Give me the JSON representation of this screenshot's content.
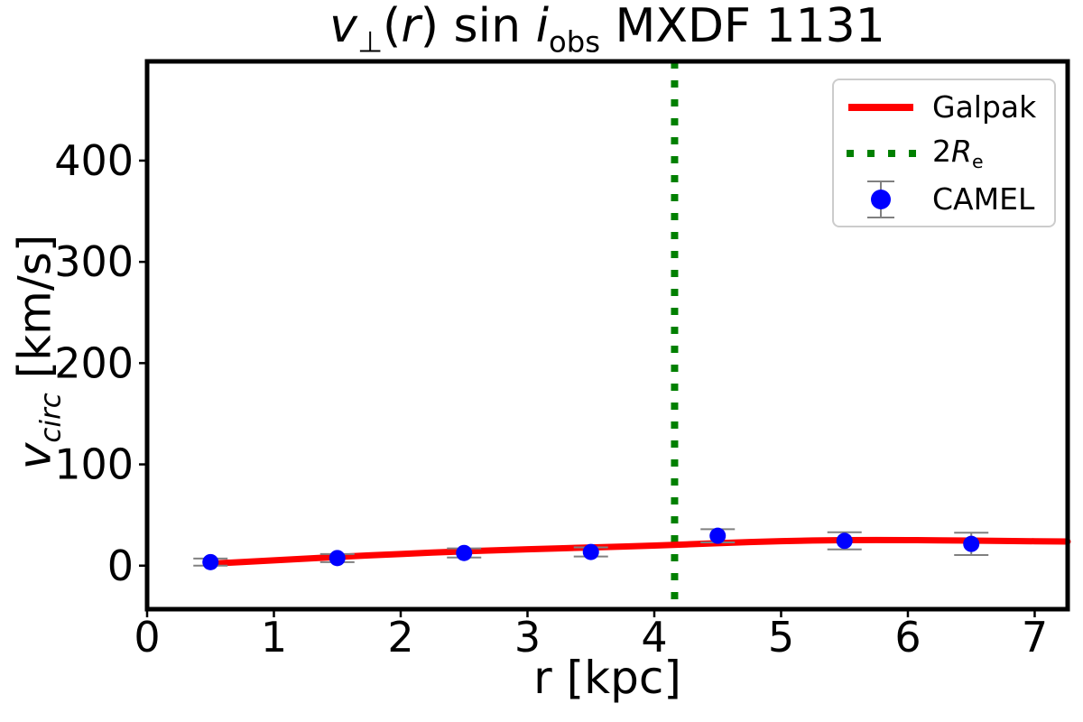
{
  "figure": {
    "title_segments": [
      {
        "t": "v",
        "s": "i"
      },
      {
        "t": "⊥",
        "s": "sub"
      },
      {
        "t": "(",
        "s": "n"
      },
      {
        "t": "r",
        "s": "i"
      },
      {
        "t": ") sin ",
        "s": "n"
      },
      {
        "t": "i",
        "s": "i"
      },
      {
        "t": "obs",
        "s": "sub"
      },
      {
        "t": " MXDF 1131",
        "s": "n"
      }
    ],
    "xlabel": "r [kpc]",
    "ylabel_segments": [
      {
        "t": "v",
        "s": "i"
      },
      {
        "t": "circ",
        "s": "isub"
      },
      {
        "t": " [km/s]",
        "s": "n"
      }
    ]
  },
  "legend": {
    "items": [
      {
        "label": "Galpak",
        "type": "line"
      },
      {
        "label_segments": [
          {
            "t": "2",
            "s": "n"
          },
          {
            "t": "R",
            "s": "i"
          },
          {
            "t": "e",
            "s": "sub"
          }
        ],
        "type": "dotted"
      },
      {
        "label": "CAMEL",
        "type": "marker"
      }
    ]
  },
  "colors": {
    "galpak": "#ff0000",
    "re_line": "#008000",
    "camel": "#0000ff",
    "errorbar": "#808080",
    "axis": "#000000",
    "legend_border": "#cccccc"
  },
  "chart_data": {
    "type": "line",
    "title": "v⊥(r) sin i_obs MXDF 1131",
    "xlabel": "r [kpc]",
    "ylabel": "v_circ [km/s]",
    "xlim": [
      0,
      7.26
    ],
    "ylim": [
      -43,
      498
    ],
    "xticks": [
      0,
      1,
      2,
      3,
      4,
      5,
      6,
      7
    ],
    "yticks": [
      0,
      100,
      200,
      300,
      400
    ],
    "grid": false,
    "legend_position": "upper right",
    "vline": {
      "x": 4.16,
      "label": "2Re",
      "style": "dotted",
      "color": "#008000"
    },
    "series": [
      {
        "name": "Galpak",
        "type": "line",
        "color": "#ff0000",
        "x": [
          0.5,
          0.75,
          1.0,
          1.25,
          1.5,
          1.75,
          2.0,
          2.25,
          2.5,
          2.75,
          3.0,
          3.25,
          3.5,
          3.75,
          4.0,
          4.25,
          4.5,
          4.75,
          5.0,
          5.25,
          5.5,
          5.75,
          6.0,
          6.25,
          6.5,
          6.75,
          7.0,
          7.26
        ],
        "y": [
          2.0,
          3.6,
          5.2,
          6.9,
          8.6,
          10.1,
          11.5,
          12.9,
          14.1,
          15.2,
          16.2,
          17.1,
          17.9,
          18.8,
          19.8,
          21.0,
          22.2,
          23.3,
          24.2,
          24.8,
          25.2,
          25.3,
          25.2,
          25.0,
          24.7,
          24.4,
          24.1,
          23.8
        ]
      },
      {
        "name": "CAMEL",
        "type": "scatter",
        "color": "#0000ff",
        "points": [
          {
            "x": 0.5,
            "y": 3.5,
            "yerr": 3.5
          },
          {
            "x": 1.5,
            "y": 7.5,
            "yerr": 4.0
          },
          {
            "x": 2.5,
            "y": 12.5,
            "yerr": 4.5
          },
          {
            "x": 3.5,
            "y": 13.5,
            "yerr": 4.5
          },
          {
            "x": 4.5,
            "y": 29.5,
            "yerr": 6.5
          },
          {
            "x": 5.5,
            "y": 24.5,
            "yerr": 8.5
          },
          {
            "x": 6.5,
            "y": 21.5,
            "yerr": 11.0
          }
        ]
      }
    ]
  }
}
